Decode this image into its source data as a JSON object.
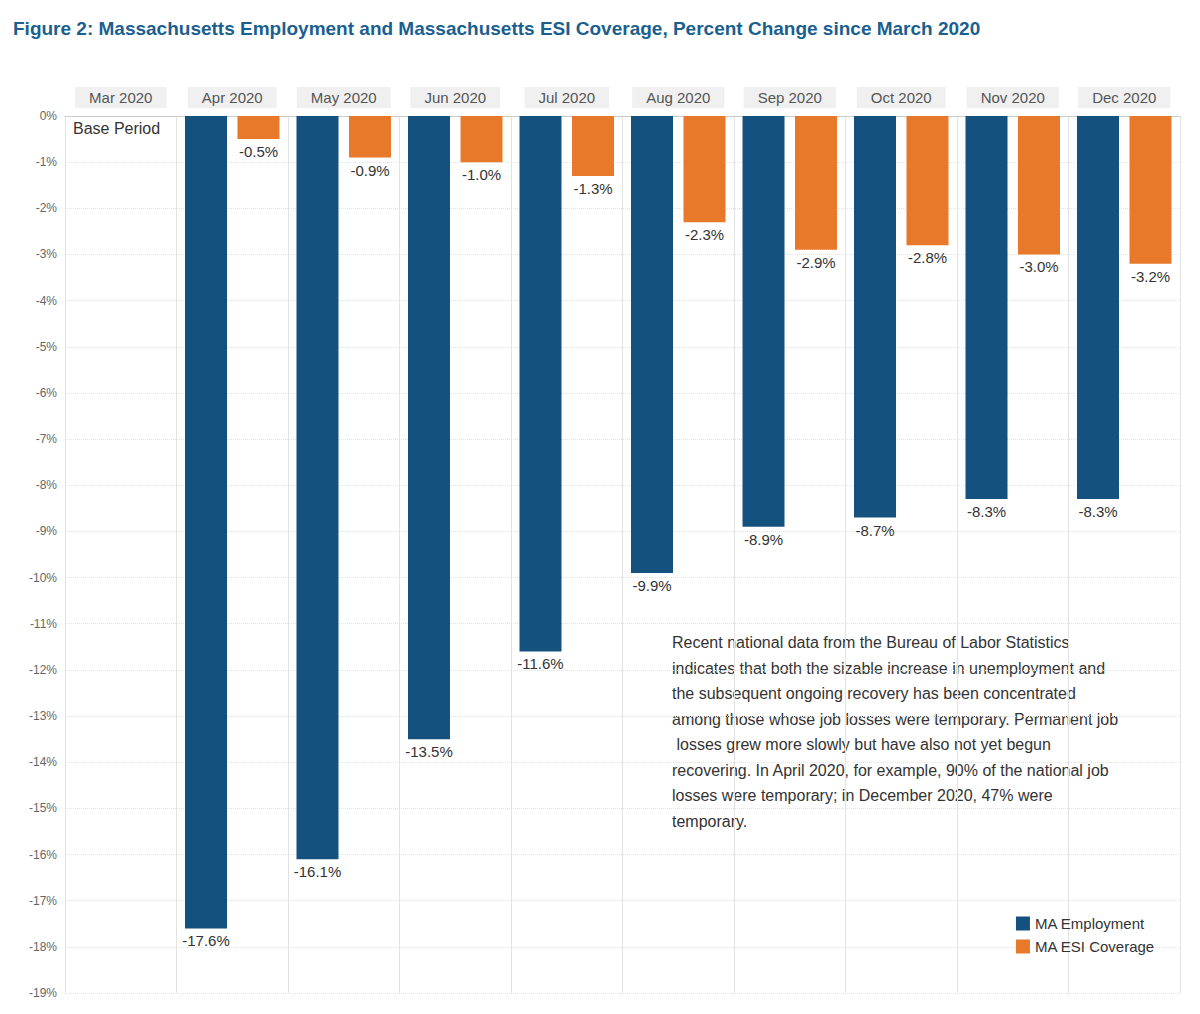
{
  "chart_data": {
    "type": "bar",
    "title": "Figure 2: Massachusetts Employment and Massachusetts ESI Coverage, Percent Change since March 2020",
    "categories": [
      "Mar 2020",
      "Apr 2020",
      "May 2020",
      "Jun 2020",
      "Jul 2020",
      "Aug 2020",
      "Sep 2020",
      "Oct 2020",
      "Nov 2020",
      "Dec 2020"
    ],
    "series": [
      {
        "name": "MA Employment",
        "color": "#14517f",
        "values": [
          null,
          -17.6,
          -16.1,
          -13.5,
          -11.6,
          -9.9,
          -8.9,
          -8.7,
          -8.3,
          -8.3
        ],
        "value_labels": [
          null,
          "-17.6%",
          "-16.1%",
          "-13.5%",
          "-11.6%",
          "-9.9%",
          "-8.9%",
          "-8.7%",
          "-8.3%",
          "-8.3%"
        ]
      },
      {
        "name": "MA ESI Coverage",
        "color": "#e8782a",
        "values": [
          null,
          -0.5,
          -0.9,
          -1.0,
          -1.3,
          -2.3,
          -2.9,
          -2.8,
          -3.0,
          -3.2
        ],
        "value_labels": [
          null,
          "-0.5%",
          "-0.9%",
          "-1.0%",
          "-1.3%",
          "-2.3%",
          "-2.9%",
          "-2.8%",
          "-3.0%",
          "-3.2%"
        ]
      }
    ],
    "ylim": [
      -19,
      0
    ],
    "yticks": [
      {
        "value": 0,
        "label": "0%"
      },
      {
        "value": -1,
        "label": "-1%"
      },
      {
        "value": -2,
        "label": "-2%"
      },
      {
        "value": -3,
        "label": "-3%"
      },
      {
        "value": -4,
        "label": "-4%"
      },
      {
        "value": -5,
        "label": "-5%"
      },
      {
        "value": -6,
        "label": "-6%"
      },
      {
        "value": -7,
        "label": "-7%"
      },
      {
        "value": -8,
        "label": "-8%"
      },
      {
        "value": -9,
        "label": "-9%"
      },
      {
        "value": -10,
        "label": "-10%"
      },
      {
        "value": -11,
        "label": "-11%"
      },
      {
        "value": -12,
        "label": "-12%"
      },
      {
        "value": -13,
        "label": "-13%"
      },
      {
        "value": -14,
        "label": "-14%"
      },
      {
        "value": -15,
        "label": "-15%"
      },
      {
        "value": -16,
        "label": "-16%"
      },
      {
        "value": -17,
        "label": "-17%"
      },
      {
        "value": -18,
        "label": "-18%"
      },
      {
        "value": -19,
        "label": "-19%"
      }
    ],
    "annotations": [
      {
        "text": "Base Period"
      },
      {
        "text": "Recent national data from the Bureau of Labor Statistics indicates that both the sizable increase in unemployment and the subsequent ongoing recovery has been concentrated among those whose job losses were temporary. Permanent job losses grew more slowly but have also not yet begun recovering. In April 2020, for example, 90% of the national job losses were temporary; in December 2020, 47% were temporary."
      }
    ],
    "data_labels": true,
    "grid": true,
    "legend": "lower right"
  }
}
